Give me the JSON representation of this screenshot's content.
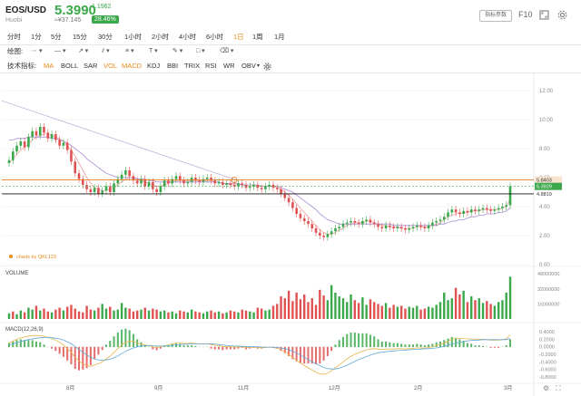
{
  "header": {
    "symbol": "EOS/USD",
    "exchange": "Huobi",
    "price": "5.3990",
    "change": "1.1962",
    "cny_price": "≈¥37.145",
    "change_pct": "28.46%",
    "config_button": "指标参数",
    "f10_label": "F10",
    "price_color": "#3aa84b"
  },
  "timeframes": [
    {
      "label": "分时",
      "active": false
    },
    {
      "label": "1分",
      "active": false
    },
    {
      "label": "5分",
      "active": false
    },
    {
      "label": "15分",
      "active": false
    },
    {
      "label": "30分",
      "active": false
    },
    {
      "label": "1小时",
      "active": false
    },
    {
      "label": "2小时",
      "active": false
    },
    {
      "label": "4小时",
      "active": false
    },
    {
      "label": "6小时",
      "active": false
    },
    {
      "label": "1日",
      "active": true
    },
    {
      "label": "1周",
      "active": false
    },
    {
      "label": "1月",
      "active": false
    }
  ],
  "drawing": {
    "label": "绘图:",
    "tools": [
      "line-tool-icon",
      "horizontal-line-tool-icon",
      "ray-tool-icon",
      "channel-tool-icon",
      "fibonacci-tool-icon",
      "text-tool-icon",
      "brush-tool-icon",
      "shape-tool-icon",
      "erase-tool-icon"
    ]
  },
  "indicators": {
    "label": "技术指标:",
    "items": [
      {
        "label": "MA",
        "on": true
      },
      {
        "label": "BOLL",
        "on": false
      },
      {
        "label": "SAR",
        "on": false
      },
      {
        "label": "VOL",
        "on": true
      },
      {
        "label": "MACD",
        "on": true
      },
      {
        "label": "KDJ",
        "on": false
      },
      {
        "label": "BBI",
        "on": false
      },
      {
        "label": "TRIX",
        "on": false
      },
      {
        "label": "RSI",
        "on": false
      },
      {
        "label": "WR",
        "on": false
      },
      {
        "label": "OBV",
        "on": false
      }
    ]
  },
  "chart_data": [
    {
      "type": "candlestick",
      "price_axis_ticks": [
        "12.00",
        "10.00",
        "8.00",
        "6.00",
        "4.00",
        "2.00",
        "0.00"
      ],
      "ylim": [
        0,
        13
      ],
      "hlines": [
        {
          "value": 5.8403,
          "label": "5.8403",
          "color": "#e07b20"
        },
        {
          "value": 5.3929,
          "label": "5.3929",
          "color": "#3aa84b"
        },
        {
          "value": 4.8819,
          "label": "4.8819",
          "color": "#111111"
        }
      ],
      "watermark": "charts by QKL123",
      "up_color": "#3aa84b",
      "down_color": "#e05252",
      "closes": [
        7.2,
        7.8,
        8.2,
        8.5,
        8.1,
        8.8,
        9.2,
        8.9,
        9.5,
        9.1,
        8.7,
        9.0,
        8.6,
        8.2,
        8.4,
        7.9,
        7.1,
        6.3,
        5.9,
        5.5,
        5.2,
        5.0,
        5.3,
        4.9,
        5.1,
        5.4,
        5.0,
        5.6,
        5.9,
        6.2,
        6.5,
        6.1,
        5.8,
        5.6,
        5.9,
        5.4,
        5.7,
        5.2,
        5.0,
        5.4,
        5.8,
        5.6,
        5.9,
        6.1,
        5.8,
        5.6,
        5.7,
        6.0,
        5.8,
        5.7,
        5.9,
        6.0,
        5.8,
        5.6,
        5.7,
        5.5,
        5.6,
        5.5,
        5.4,
        5.6,
        5.5,
        5.3,
        5.4,
        5.5,
        5.3,
        5.2,
        5.4,
        5.5,
        5.3,
        5.2,
        4.9,
        4.6,
        4.3,
        3.9,
        3.5,
        3.2,
        3.0,
        2.8,
        2.5,
        2.2,
        2.0,
        1.9,
        2.1,
        2.3,
        2.5,
        2.6,
        2.8,
        2.9,
        3.0,
        2.9,
        2.8,
        3.0,
        3.1,
        2.9,
        2.8,
        2.6,
        2.5,
        2.7,
        2.6,
        2.5,
        2.6,
        2.5,
        2.4,
        2.5,
        2.6,
        2.7,
        2.6,
        2.5,
        2.7,
        2.9,
        3.0,
        3.1,
        3.3,
        3.6,
        3.8,
        3.6,
        3.5,
        3.7,
        3.6,
        3.8,
        3.7,
        3.8,
        3.9,
        3.8,
        3.7,
        3.8,
        3.9,
        4.0,
        4.1,
        5.4
      ],
      "ma_lines": [
        {
          "color": "#f2a0a0",
          "values": [
            7.0,
            7.3,
            7.6,
            7.9,
            8.1,
            8.3,
            8.6,
            8.8,
            8.9,
            9.0,
            9.0,
            8.9,
            8.8,
            8.7,
            8.5,
            8.2,
            7.9,
            7.5,
            7.0,
            6.5,
            6.0,
            5.6,
            5.3,
            5.2,
            5.1,
            5.1,
            5.2,
            5.3,
            5.5,
            5.7,
            5.9,
            6.0,
            6.0,
            5.9,
            5.8,
            5.7,
            5.6,
            5.5,
            5.4,
            5.4,
            5.5,
            5.6,
            5.7,
            5.8,
            5.8,
            5.8,
            5.8,
            5.8,
            5.8,
            5.8,
            5.8,
            5.8,
            5.8,
            5.7,
            5.7,
            5.6,
            5.6,
            5.5,
            5.5,
            5.5,
            5.5,
            5.4,
            5.4,
            5.4,
            5.4,
            5.4,
            5.4,
            5.4,
            5.4,
            5.3,
            5.2,
            5.0,
            4.8,
            4.5,
            4.2,
            3.9,
            3.6,
            3.3,
            3.0,
            2.7,
            2.4,
            2.2,
            2.1,
            2.1,
            2.2,
            2.4,
            2.5,
            2.7,
            2.8,
            2.9,
            2.9,
            2.9,
            3.0,
            3.0,
            2.9,
            2.8,
            2.7,
            2.7,
            2.6,
            2.6,
            2.6,
            2.5,
            2.5,
            2.5,
            2.5,
            2.6,
            2.6,
            2.6,
            2.6,
            2.7,
            2.8,
            2.9,
            3.1,
            3.3,
            3.4,
            3.5,
            3.5,
            3.6,
            3.6,
            3.7,
            3.7,
            3.7,
            3.8,
            3.8,
            3.8,
            3.8,
            3.8,
            3.9,
            4.0,
            4.5
          ]
        },
        {
          "color": "#a98bd0",
          "values": [
            8.6,
            8.6,
            8.7,
            8.7,
            8.7,
            8.8,
            8.8,
            8.8,
            8.8,
            8.8,
            8.8,
            8.7,
            8.7,
            8.6,
            8.5,
            8.4,
            8.2,
            8.0,
            7.8,
            7.6,
            7.3,
            7.1,
            6.9,
            6.7,
            6.5,
            6.3,
            6.2,
            6.1,
            6.0,
            6.0,
            6.0,
            6.0,
            6.0,
            5.9,
            5.9,
            5.9,
            5.8,
            5.8,
            5.7,
            5.7,
            5.7,
            5.7,
            5.7,
            5.7,
            5.7,
            5.7,
            5.7,
            5.7,
            5.7,
            5.7,
            5.7,
            5.7,
            5.7,
            5.7,
            5.7,
            5.6,
            5.6,
            5.6,
            5.6,
            5.6,
            5.5,
            5.5,
            5.5,
            5.5,
            5.5,
            5.4,
            5.4,
            5.4,
            5.4,
            5.4,
            5.3,
            5.2,
            5.1,
            5.0,
            4.8,
            4.6,
            4.4,
            4.2,
            4.0,
            3.8,
            3.5,
            3.3,
            3.1,
            3.0,
            2.9,
            2.8,
            2.8,
            2.8,
            2.8,
            2.8,
            2.8,
            2.8,
            2.8,
            2.8,
            2.8,
            2.8,
            2.8,
            2.8,
            2.8,
            2.7,
            2.7,
            2.7,
            2.7,
            2.7,
            2.7,
            2.7,
            2.7,
            2.7,
            2.7,
            2.7,
            2.7,
            2.8,
            2.8,
            2.9,
            3.0,
            3.0,
            3.1,
            3.1,
            3.2,
            3.3,
            3.3,
            3.4,
            3.4,
            3.5,
            3.5,
            3.5,
            3.6,
            3.6,
            3.7,
            3.9
          ]
        }
      ],
      "declining_line_start": 11.3
    },
    {
      "type": "bar",
      "title": "VOLUME",
      "axis_ticks": [
        "48000000",
        "32000000",
        "16000000"
      ],
      "ylim": [
        0,
        52000000
      ],
      "values_m": [
        6,
        8,
        5,
        9,
        7,
        12,
        10,
        14,
        9,
        11,
        8,
        7,
        10,
        12,
        9,
        13,
        15,
        11,
        8,
        7,
        14,
        10,
        9,
        12,
        16,
        11,
        13,
        9,
        10,
        17,
        12,
        11,
        8,
        9,
        10,
        12,
        9,
        11,
        10,
        8,
        9,
        7,
        8,
        6,
        9,
        8,
        7,
        10,
        8,
        7,
        6,
        8,
        9,
        7,
        8,
        6,
        7,
        9,
        8,
        7,
        10,
        9,
        8,
        7,
        12,
        11,
        9,
        10,
        14,
        16,
        24,
        22,
        30,
        19,
        28,
        21,
        26,
        18,
        22,
        15,
        31,
        25,
        20,
        36,
        28,
        24,
        22,
        18,
        26,
        20,
        17,
        23,
        15,
        21,
        18,
        16,
        14,
        17,
        12,
        15,
        13,
        14,
        11,
        13,
        12,
        14,
        10,
        11,
        13,
        12,
        15,
        18,
        28,
        20,
        22,
        33,
        26,
        30,
        18,
        24,
        20,
        22,
        17,
        19,
        16,
        14,
        18,
        20,
        28,
        45
      ],
      "up_flags": [
        1,
        0,
        1,
        1,
        0,
        1,
        1,
        0,
        1,
        0,
        0,
        1,
        0,
        0,
        1,
        0,
        0,
        0,
        0,
        0,
        0,
        0,
        1,
        0,
        1,
        1,
        0,
        1,
        1,
        1,
        1,
        0,
        0,
        0,
        1,
        0,
        1,
        0,
        0,
        1,
        1,
        0,
        1,
        1,
        0,
        0,
        1,
        1,
        0,
        0,
        1,
        1,
        0,
        0,
        1,
        0,
        1,
        0,
        0,
        1,
        0,
        0,
        1,
        1,
        0,
        0,
        1,
        1,
        0,
        0,
        0,
        0,
        0,
        0,
        0,
        0,
        0,
        0,
        0,
        0,
        0,
        0,
        1,
        1,
        1,
        1,
        1,
        1,
        1,
        0,
        0,
        1,
        1,
        0,
        0,
        0,
        0,
        1,
        0,
        0,
        1,
        0,
        0,
        1,
        1,
        1,
        0,
        0,
        1,
        1,
        1,
        1,
        1,
        1,
        1,
        0,
        0,
        1,
        0,
        1,
        0,
        1,
        1,
        0,
        0,
        1,
        1,
        1,
        1,
        1
      ]
    },
    {
      "type": "line",
      "title": "MACD(12,26,9)",
      "axis_ticks": [
        "0.4000",
        "0.2000",
        "0.0000",
        "-0.2000",
        "-0.4000",
        "-0.6000",
        "-0.8000"
      ],
      "ylim": [
        -0.9,
        0.5
      ],
      "dif": [
        0.1,
        0.15,
        0.2,
        0.24,
        0.26,
        0.28,
        0.3,
        0.3,
        0.3,
        0.28,
        0.25,
        0.22,
        0.18,
        0.12,
        0.05,
        -0.05,
        -0.15,
        -0.28,
        -0.38,
        -0.45,
        -0.5,
        -0.52,
        -0.48,
        -0.45,
        -0.4,
        -0.32,
        -0.25,
        -0.15,
        -0.05,
        0.05,
        0.12,
        0.15,
        0.14,
        0.1,
        0.08,
        0.05,
        0.03,
        0.0,
        -0.02,
        0.0,
        0.03,
        0.05,
        0.08,
        0.1,
        0.1,
        0.09,
        0.09,
        0.1,
        0.09,
        0.08,
        0.08,
        0.08,
        0.06,
        0.04,
        0.03,
        0.01,
        0.01,
        0.0,
        -0.01,
        0.0,
        0.0,
        -0.02,
        -0.02,
        -0.01,
        -0.02,
        -0.03,
        -0.02,
        -0.01,
        -0.02,
        -0.04,
        -0.08,
        -0.13,
        -0.2,
        -0.28,
        -0.36,
        -0.43,
        -0.5,
        -0.56,
        -0.62,
        -0.68,
        -0.72,
        -0.73,
        -0.7,
        -0.64,
        -0.56,
        -0.48,
        -0.4,
        -0.32,
        -0.25,
        -0.2,
        -0.16,
        -0.12,
        -0.08,
        -0.06,
        -0.05,
        -0.06,
        -0.07,
        -0.06,
        -0.06,
        -0.06,
        -0.05,
        -0.05,
        -0.06,
        -0.05,
        -0.04,
        -0.03,
        -0.03,
        -0.03,
        -0.02,
        0.0,
        0.03,
        0.06,
        0.1,
        0.15,
        0.2,
        0.22,
        0.22,
        0.22,
        0.21,
        0.21,
        0.2,
        0.2,
        0.2,
        0.19,
        0.18,
        0.18,
        0.18,
        0.19,
        0.21,
        0.32
      ],
      "dea": [
        0.05,
        0.08,
        0.11,
        0.14,
        0.17,
        0.19,
        0.21,
        0.23,
        0.24,
        0.25,
        0.25,
        0.24,
        0.23,
        0.21,
        0.18,
        0.13,
        0.08,
        0.01,
        -0.07,
        -0.15,
        -0.22,
        -0.28,
        -0.32,
        -0.35,
        -0.36,
        -0.35,
        -0.33,
        -0.29,
        -0.24,
        -0.18,
        -0.12,
        -0.07,
        -0.03,
        0.0,
        0.02,
        0.03,
        0.03,
        0.03,
        0.02,
        0.02,
        0.02,
        0.03,
        0.04,
        0.05,
        0.06,
        0.07,
        0.07,
        0.08,
        0.08,
        0.08,
        0.08,
        0.08,
        0.08,
        0.07,
        0.06,
        0.05,
        0.04,
        0.03,
        0.02,
        0.02,
        0.01,
        0.01,
        0.0,
        0.0,
        0.0,
        -0.01,
        -0.01,
        -0.01,
        -0.01,
        -0.02,
        -0.03,
        -0.05,
        -0.08,
        -0.12,
        -0.17,
        -0.22,
        -0.28,
        -0.34,
        -0.4,
        -0.45,
        -0.5,
        -0.55,
        -0.58,
        -0.59,
        -0.59,
        -0.57,
        -0.53,
        -0.49,
        -0.44,
        -0.39,
        -0.34,
        -0.3,
        -0.26,
        -0.22,
        -0.19,
        -0.16,
        -0.14,
        -0.13,
        -0.12,
        -0.11,
        -0.1,
        -0.09,
        -0.09,
        -0.08,
        -0.07,
        -0.07,
        -0.06,
        -0.05,
        -0.05,
        -0.04,
        -0.03,
        -0.01,
        0.01,
        0.04,
        0.07,
        0.1,
        0.12,
        0.14,
        0.16,
        0.17,
        0.18,
        0.18,
        0.19,
        0.19,
        0.19,
        0.19,
        0.19,
        0.19,
        0.19,
        0.22
      ]
    }
  ],
  "x_axis_labels": [
    "8月",
    "9月",
    "11月",
    "12月",
    "2月",
    "3月"
  ]
}
